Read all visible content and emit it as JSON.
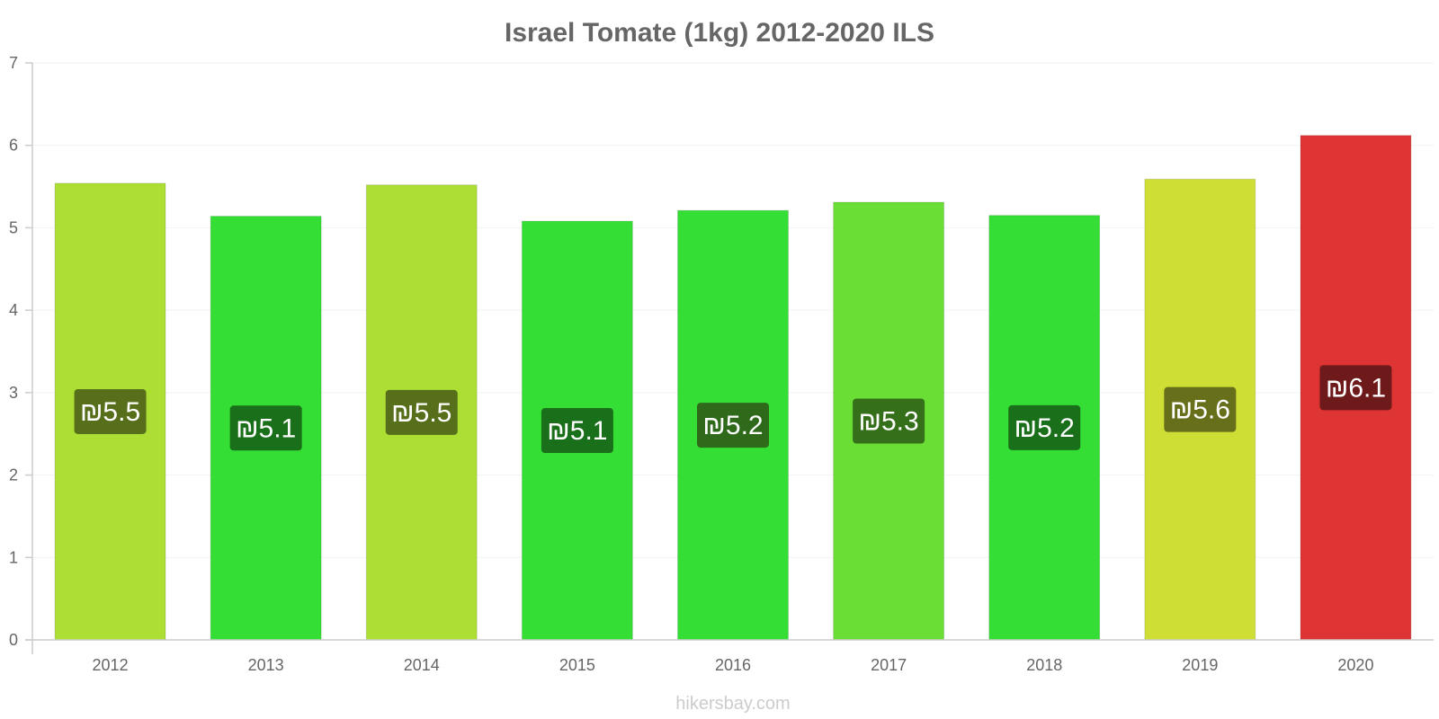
{
  "chart_data": {
    "type": "bar",
    "title": "Israel Tomate (1kg) 2012-2020 ILS",
    "categories": [
      "2012",
      "2013",
      "2014",
      "2015",
      "2016",
      "2017",
      "2018",
      "2019",
      "2020"
    ],
    "values": [
      5.54,
      5.14,
      5.52,
      5.08,
      5.21,
      5.31,
      5.15,
      5.59,
      6.12
    ],
    "data_labels": [
      "₪5.5",
      "₪5.1",
      "₪5.5",
      "₪5.1",
      "₪5.2",
      "₪5.3",
      "₪5.2",
      "₪5.6",
      "₪6.1"
    ],
    "bar_colors": [
      "#ADDE34",
      "#34DE34",
      "#ADDE34",
      "#34DE34",
      "#34DE34",
      "#6ADE34",
      "#34DE34",
      "#CFDE34",
      "#DE3434"
    ],
    "label_bg_colors": [
      "#576F1A",
      "#1A6F1A",
      "#576F1A",
      "#1A6F1A",
      "#2E6A1A",
      "#356F1A",
      "#1A6F1A",
      "#686F1A",
      "#6F1A1A"
    ],
    "y_ticks": [
      "0",
      "1",
      "2",
      "3",
      "4",
      "5",
      "6",
      "7"
    ],
    "ylim": [
      0,
      7
    ],
    "xlabel": "",
    "ylabel": "",
    "grid": true,
    "legend": "none"
  },
  "watermark": "hikersbay.com"
}
